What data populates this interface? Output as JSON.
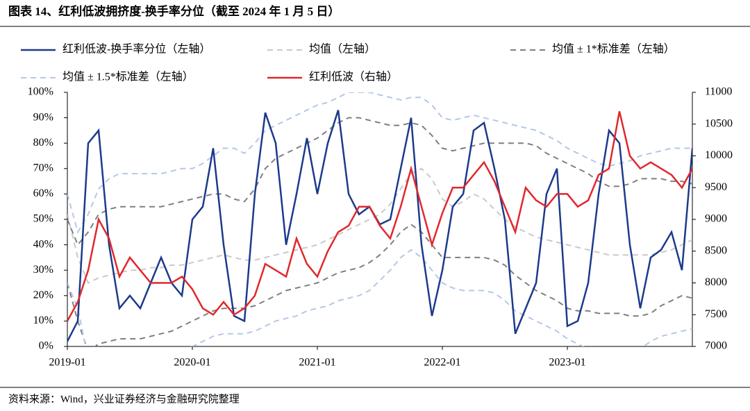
{
  "title": "图表 14、红利低波拥挤度-换手率分位（截至 2024 年 1 月 5 日）",
  "source": "资料来源：Wind，兴业证券经济与金融研究院整理",
  "chart_data": {
    "type": "line",
    "categories": [
      "2019-01",
      null,
      null,
      null,
      null,
      null,
      null,
      null,
      null,
      null,
      null,
      null,
      "2020-01",
      null,
      null,
      null,
      null,
      null,
      null,
      null,
      null,
      null,
      null,
      null,
      "2021-01",
      null,
      null,
      null,
      null,
      null,
      null,
      null,
      null,
      null,
      null,
      null,
      "2022-01",
      null,
      null,
      null,
      null,
      null,
      null,
      null,
      null,
      null,
      null,
      null,
      "2023-01",
      null,
      null,
      null,
      null,
      null,
      null,
      null,
      null,
      null,
      null,
      null,
      null
    ],
    "ylim": [
      0,
      100
    ],
    "yticks": [
      {
        "value": 0,
        "label": "0%"
      },
      {
        "value": 10,
        "label": "10%"
      },
      {
        "value": 20,
        "label": "20%"
      },
      {
        "value": 30,
        "label": "30%"
      },
      {
        "value": 40,
        "label": "40%"
      },
      {
        "value": 50,
        "label": "50%"
      },
      {
        "value": 60,
        "label": "60%"
      },
      {
        "value": 70,
        "label": "70%"
      },
      {
        "value": 80,
        "label": "80%"
      },
      {
        "value": 90,
        "label": "90%"
      },
      {
        "value": 100,
        "label": "100%"
      }
    ],
    "y2lim": [
      7000,
      11000
    ],
    "y2ticks": [
      7000,
      7500,
      8000,
      8500,
      9000,
      9500,
      10000,
      10500,
      11000
    ],
    "series": [
      {
        "name": "红利低波-换手率分位（左轴）",
        "color": "#1c3a8c",
        "dash": "none",
        "values": [
          2,
          10,
          80,
          85,
          40,
          15,
          20,
          15,
          25,
          35,
          25,
          20,
          50,
          55,
          78,
          40,
          12,
          10,
          60,
          92,
          80,
          40,
          60,
          82,
          60,
          80,
          93,
          60,
          52,
          55,
          48,
          50,
          70,
          90,
          40,
          12,
          30,
          55,
          60,
          85,
          88,
          70,
          50,
          5,
          15,
          25,
          60,
          70,
          8,
          10,
          25,
          60,
          85,
          80,
          40,
          15,
          35,
          38,
          45,
          30,
          78
        ]
      },
      {
        "name": "均值（左轴）",
        "color": "#c9c9c9",
        "dash": "8 6",
        "values": [
          52,
          35,
          25,
          27,
          28,
          29,
          30,
          30,
          31,
          31,
          32,
          32,
          33,
          34,
          35,
          36,
          35,
          34,
          34,
          35,
          36,
          37,
          38,
          39,
          40,
          42,
          44,
          46,
          48,
          50,
          52,
          56,
          62,
          68,
          70,
          66,
          58,
          55,
          57,
          60,
          58,
          54,
          50,
          47,
          45,
          43,
          42,
          41,
          40,
          39,
          38,
          37,
          36,
          36,
          36,
          36,
          36,
          37,
          38,
          40,
          42
        ]
      },
      {
        "name": "均值 ± 1*标准差（左轴）",
        "color": "#7f7f7f",
        "dash": "8 6",
        "values": [
          50,
          40,
          45,
          52,
          54,
          55,
          55,
          55,
          55,
          55,
          56,
          57,
          58,
          59,
          60,
          60,
          58,
          57,
          62,
          70,
          74,
          76,
          78,
          80,
          82,
          85,
          88,
          90,
          90,
          89,
          88,
          87,
          87,
          88,
          87,
          83,
          78,
          77,
          78,
          79,
          80,
          80,
          80,
          80,
          80,
          79,
          76,
          74,
          72,
          70,
          68,
          65,
          63,
          63,
          64,
          66,
          66,
          66,
          65,
          65,
          64
        ],
        "lower_values": [
          25,
          10,
          -2,
          1,
          2,
          3,
          3,
          3,
          4,
          5,
          6,
          8,
          10,
          12,
          14,
          15,
          15,
          15,
          16,
          18,
          20,
          22,
          23,
          24,
          25,
          27,
          29,
          30,
          31,
          33,
          36,
          40,
          45,
          48,
          45,
          40,
          35,
          35,
          35,
          35,
          35,
          34,
          32,
          28,
          25,
          22,
          20,
          18,
          15,
          14,
          14,
          13,
          13,
          13,
          12,
          12,
          13,
          16,
          18,
          20,
          19
        ]
      },
      {
        "name": "均值 ± 1.5*标准差（左轴）",
        "color": "#b4c7e7",
        "dash": "8 6",
        "values": [
          60,
          45,
          52,
          62,
          66,
          68,
          68,
          68,
          68,
          68,
          69,
          70,
          70,
          72,
          75,
          78,
          78,
          76,
          80,
          85,
          87,
          89,
          91,
          93,
          95,
          96,
          98,
          100,
          100,
          100,
          99,
          98,
          97,
          98,
          98,
          95,
          90,
          89,
          90,
          91,
          90,
          89,
          88,
          87,
          86,
          85,
          83,
          81,
          78,
          76,
          74,
          72,
          71,
          72,
          73,
          75,
          76,
          77,
          78,
          78,
          78
        ],
        "lower_values": [
          25,
          15,
          -5,
          -10,
          -10,
          -10,
          -10,
          -10,
          -8,
          -6,
          -4,
          -2,
          0,
          2,
          4,
          5,
          5,
          5,
          6,
          8,
          10,
          11,
          12,
          14,
          15,
          16,
          18,
          19,
          20,
          22,
          26,
          30,
          35,
          38,
          35,
          30,
          25,
          23,
          22,
          22,
          22,
          21,
          18,
          14,
          12,
          10,
          8,
          6,
          3,
          1,
          -1,
          -2,
          -2,
          -2,
          -2,
          -1,
          2,
          4,
          5,
          6,
          7
        ]
      },
      {
        "name": "红利低波（右轴）",
        "color": "#e0282c",
        "dash": "none",
        "axis": "y2",
        "values": [
          7400,
          7700,
          8200,
          9000,
          8700,
          8100,
          8400,
          8200,
          8000,
          8000,
          8000,
          8100,
          7900,
          7600,
          7500,
          7700,
          7500,
          7600,
          7800,
          8300,
          8200,
          8100,
          8700,
          8300,
          8100,
          8500,
          8800,
          8900,
          9200,
          9200,
          8900,
          8700,
          9200,
          9800,
          9200,
          8600,
          9100,
          9500,
          9500,
          9700,
          9900,
          9600,
          9200,
          8800,
          9500,
          9300,
          9200,
          9400,
          9400,
          9200,
          9300,
          9700,
          9800,
          10700,
          10000,
          9800,
          9900,
          9800,
          9700,
          9500,
          9800
        ]
      }
    ]
  }
}
